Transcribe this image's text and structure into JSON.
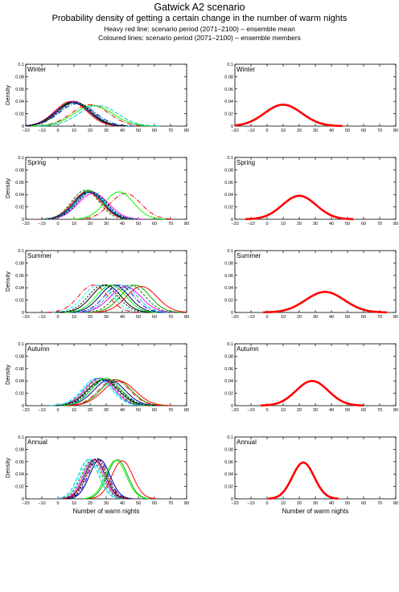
{
  "header": {
    "title": "Gatwick A2 scenario",
    "subtitle": "Probability density of getting a certain change in the number of warm nights",
    "note_heavy": "Heavy red line: scenario period (2071–2100) – ensemble mean",
    "note_coloured": "Coloured lines: scenario period (2071–2100) – ensemble members"
  },
  "chart_data": {
    "type": "line",
    "ylabel": "Density",
    "xlabel": "Number of warm nights",
    "xlim": [
      -20,
      80
    ],
    "ylim": [
      0,
      0.1
    ],
    "xticks": [
      "−20",
      "−10",
      "0",
      "10",
      "20",
      "30",
      "40",
      "50",
      "60",
      "70",
      "80"
    ],
    "yticks": [
      "0",
      "0.02",
      "0.04",
      "0.06",
      "0.08",
      "0.1"
    ],
    "grid": false,
    "colors": {
      "mean": "#ff0000",
      "members": [
        "#000000",
        "#00aa00",
        "#00ffff",
        "#ff0000",
        "#0000ff",
        "#ff00ff",
        "#000080",
        "#008000",
        "#ff0000",
        "#00ff00",
        "#00c0c0",
        "#000000"
      ]
    },
    "panels": [
      {
        "season": "Winter",
        "members": [
          {
            "mu": 10,
            "sd": 10.5
          },
          {
            "mu": 9,
            "sd": 10
          },
          {
            "mu": 11,
            "sd": 10.5
          },
          {
            "mu": 8,
            "sd": 10
          },
          {
            "mu": 12,
            "sd": 11
          },
          {
            "mu": 10,
            "sd": 10
          },
          {
            "mu": 9,
            "sd": 10.5
          },
          {
            "mu": 11,
            "sd": 10.5
          },
          {
            "mu": 20,
            "sd": 11.5
          },
          {
            "mu": 22,
            "sd": 12
          },
          {
            "mu": 25,
            "sd": 12
          },
          {
            "mu": 10,
            "sd": 10
          }
        ],
        "mean": {
          "mu": 10,
          "sd": 11.5
        }
      },
      {
        "season": "Spring",
        "members": [
          {
            "mu": 20,
            "sd": 9
          },
          {
            "mu": 19,
            "sd": 8.5
          },
          {
            "mu": 21,
            "sd": 9
          },
          {
            "mu": 18,
            "sd": 9
          },
          {
            "mu": 20,
            "sd": 9
          },
          {
            "mu": 22,
            "sd": 9.5
          },
          {
            "mu": 19,
            "sd": 9
          },
          {
            "mu": 17,
            "sd": 8.5
          },
          {
            "mu": 42,
            "sd": 9.5
          },
          {
            "mu": 38,
            "sd": 9
          },
          {
            "mu": 20,
            "sd": 9
          },
          {
            "mu": 21,
            "sd": 9
          }
        ],
        "mean": {
          "mu": 20,
          "sd": 10.5
        }
      },
      {
        "season": "Summer",
        "members": [
          {
            "mu": 30,
            "sd": 9
          },
          {
            "mu": 48,
            "sd": 9
          },
          {
            "mu": 25,
            "sd": 9
          },
          {
            "mu": 52,
            "sd": 9.5
          },
          {
            "mu": 38,
            "sd": 9
          },
          {
            "mu": 42,
            "sd": 9.5
          },
          {
            "mu": 35,
            "sd": 9
          },
          {
            "mu": 45,
            "sd": 9
          },
          {
            "mu": 22,
            "sd": 9
          },
          {
            "mu": 33,
            "sd": 9
          },
          {
            "mu": 40,
            "sd": 9
          },
          {
            "mu": 28,
            "sd": 9
          }
        ],
        "mean": {
          "mu": 36,
          "sd": 12
        }
      },
      {
        "season": "Autumn",
        "members": [
          {
            "mu": 28,
            "sd": 9.5
          },
          {
            "mu": 36,
            "sd": 9.5
          },
          {
            "mu": 24,
            "sd": 9
          },
          {
            "mu": 38,
            "sd": 10
          },
          {
            "mu": 30,
            "sd": 9.5
          },
          {
            "mu": 26,
            "sd": 9
          },
          {
            "mu": 32,
            "sd": 9.5
          },
          {
            "mu": 27,
            "sd": 9
          },
          {
            "mu": 35,
            "sd": 9.5
          },
          {
            "mu": 30,
            "sd": 9
          },
          {
            "mu": 25,
            "sd": 9
          },
          {
            "mu": 29,
            "sd": 9.5
          }
        ],
        "mean": {
          "mu": 28,
          "sd": 10
        }
      },
      {
        "season": "Annual",
        "members": [
          {
            "mu": 23,
            "sd": 6.3
          },
          {
            "mu": 37,
            "sd": 6.3
          },
          {
            "mu": 20,
            "sd": 6.2
          },
          {
            "mu": 40,
            "sd": 6.5
          },
          {
            "mu": 25,
            "sd": 6.2
          },
          {
            "mu": 22,
            "sd": 6.3
          },
          {
            "mu": 26,
            "sd": 6.3
          },
          {
            "mu": 21,
            "sd": 6.4
          },
          {
            "mu": 24,
            "sd": 6.5
          },
          {
            "mu": 36,
            "sd": 6.4
          },
          {
            "mu": 19,
            "sd": 6.3
          },
          {
            "mu": 24,
            "sd": 6.1
          }
        ],
        "mean": {
          "mu": 22.5,
          "sd": 6.8
        }
      }
    ]
  }
}
